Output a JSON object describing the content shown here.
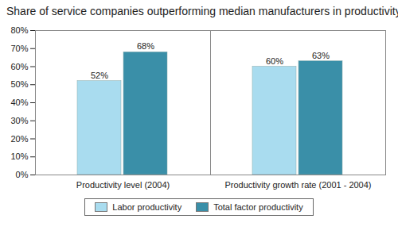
{
  "chart_data": {
    "type": "bar",
    "title": "Share of service companies outperforming median manufacturers in productivity",
    "categories": [
      "Productivity level (2004)",
      "Productivity growth rate (2001 - 2004)"
    ],
    "series": [
      {
        "name": "Labor productivity",
        "color": "#a9dcef",
        "values": [
          52,
          60
        ],
        "value_labels": [
          "52%",
          "60%"
        ]
      },
      {
        "name": "Total factor productivity",
        "color": "#3a8fa8",
        "values": [
          68,
          63
        ],
        "value_labels": [
          "68%",
          "63%"
        ]
      }
    ],
    "ylim": [
      0,
      80
    ],
    "yticks": [
      {
        "value": 0,
        "label": "0%"
      },
      {
        "value": 10,
        "label": "10%"
      },
      {
        "value": 20,
        "label": "20%"
      },
      {
        "value": 30,
        "label": "30%"
      },
      {
        "value": 40,
        "label": "40%"
      },
      {
        "value": 50,
        "label": "50%"
      },
      {
        "value": 60,
        "label": "60%"
      },
      {
        "value": 70,
        "label": "70%"
      },
      {
        "value": 80,
        "label": "80%"
      }
    ],
    "grid": false,
    "data_labels": true,
    "legend": "bottom"
  }
}
